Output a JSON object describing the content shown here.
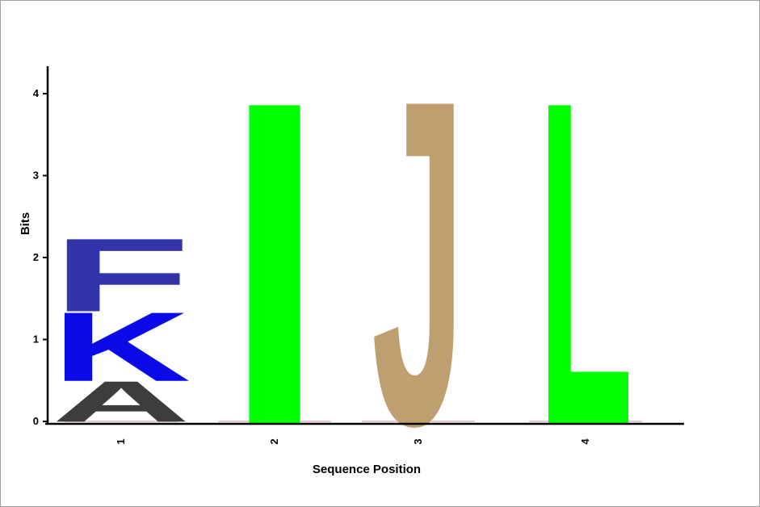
{
  "chart_data": {
    "type": "sequence-logo",
    "xlabel": "Sequence Position",
    "ylabel": "Bits",
    "ylim": [
      0,
      4
    ],
    "yticks": [
      "0",
      "1",
      "2",
      "3",
      "4"
    ],
    "positions": [
      {
        "label": "1",
        "letters": [
          {
            "char": "A",
            "bits": 0.5,
            "color": "#3d3d3d"
          },
          {
            "char": "K",
            "bits": 0.85,
            "color": "#0a0ae8"
          },
          {
            "char": "F",
            "bits": 0.9,
            "color": "#3333aa"
          }
        ]
      },
      {
        "label": "2",
        "letters": [
          {
            "char": "I",
            "bits": 3.98,
            "color": "#00ff00"
          }
        ]
      },
      {
        "label": "3",
        "letters": [
          {
            "char": "J",
            "bits": 4.0,
            "color": "#bf9f6f"
          }
        ]
      },
      {
        "label": "4",
        "letters": [
          {
            "char": "L",
            "bits": 3.98,
            "color": "#00ff00"
          }
        ]
      }
    ]
  }
}
